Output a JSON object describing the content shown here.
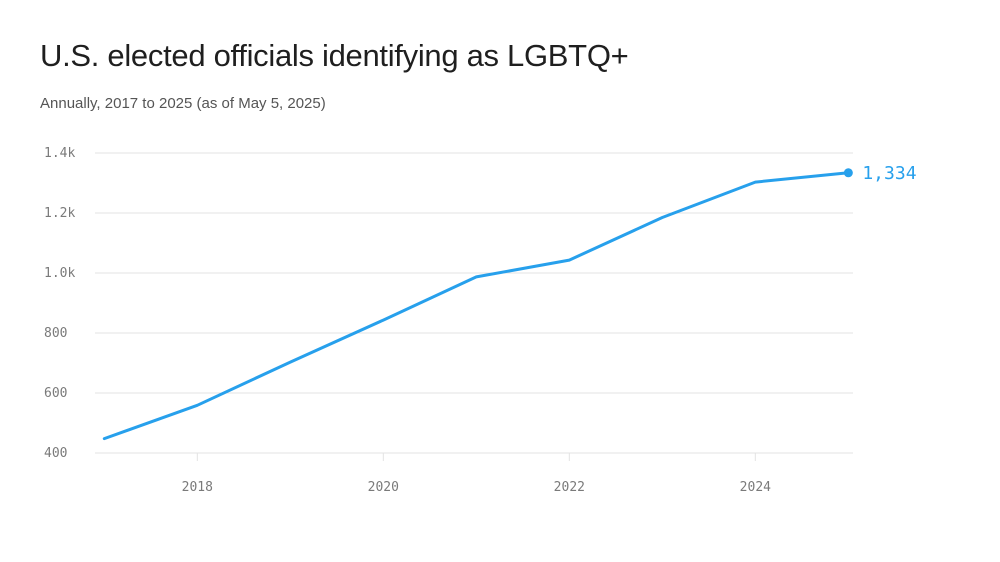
{
  "title": "U.S. elected officials identifying as LGBTQ+",
  "subtitle": "Annually, 2017 to 2025 (as of May 5, 2025)",
  "colors": {
    "line": "#27a0ec",
    "grid": "#e3e3e3",
    "tick_text": "#7a7a7a"
  },
  "chart_data": {
    "type": "line",
    "title": "U.S. elected officials identifying as LGBTQ+",
    "subtitle": "Annually, 2017 to 2025 (as of May 5, 2025)",
    "xlabel": "",
    "ylabel": "",
    "x": [
      2017,
      2018,
      2019,
      2020,
      2021,
      2022,
      2023,
      2024,
      2025
    ],
    "series": [
      {
        "values": [
          448,
          559,
          703,
          843,
          987,
          1043,
          1185,
          1303,
          1334
        ]
      }
    ],
    "xlim": [
      2016.9,
      2025.05
    ],
    "ylim": [
      400,
      1400
    ],
    "x_ticks": [
      2018,
      2020,
      2022,
      2024
    ],
    "x_tick_labels": [
      "2018",
      "2020",
      "2022",
      "2024"
    ],
    "y_ticks": [
      400,
      600,
      800,
      1000,
      1200,
      1400
    ],
    "y_tick_labels": [
      "400",
      "600",
      "800",
      "1.0k",
      "1.2k",
      "1.4k"
    ],
    "end_label": "1,334",
    "grid": true,
    "legend": "none"
  }
}
